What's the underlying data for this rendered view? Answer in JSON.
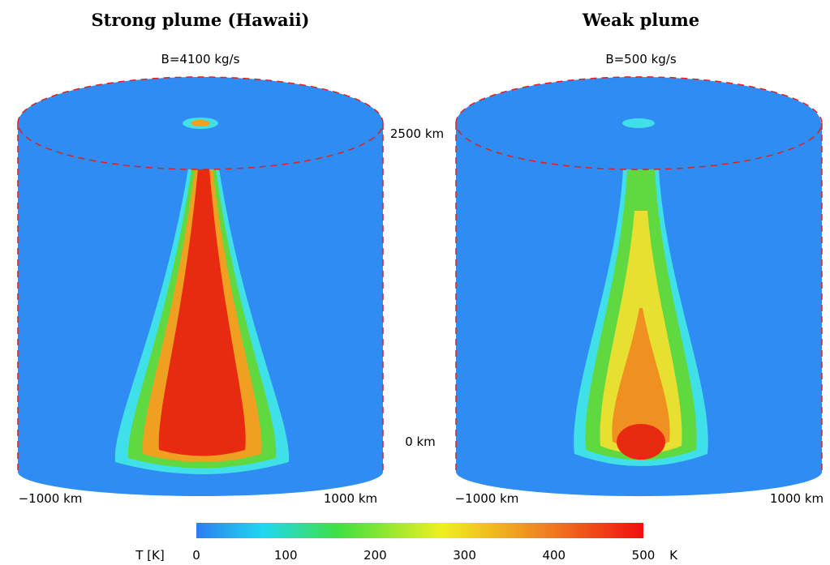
{
  "panels": [
    {
      "title": "Strong plume (Hawaii)",
      "flux": "B=4100 kg/s",
      "x_min_label": "−1000 km",
      "x_max_label": "1000 km"
    },
    {
      "title": "Weak plume",
      "flux": "B=500 kg/s",
      "x_min_label": "−1000 km",
      "x_max_label": "1000 km"
    }
  ],
  "depth_labels": {
    "top": "2500 km",
    "bottom": "0 km"
  },
  "colorbar": {
    "label": "T [K]",
    "unit": "K",
    "range": [
      0,
      500
    ],
    "ticks": [
      0,
      100,
      200,
      300,
      400,
      500
    ]
  }
}
